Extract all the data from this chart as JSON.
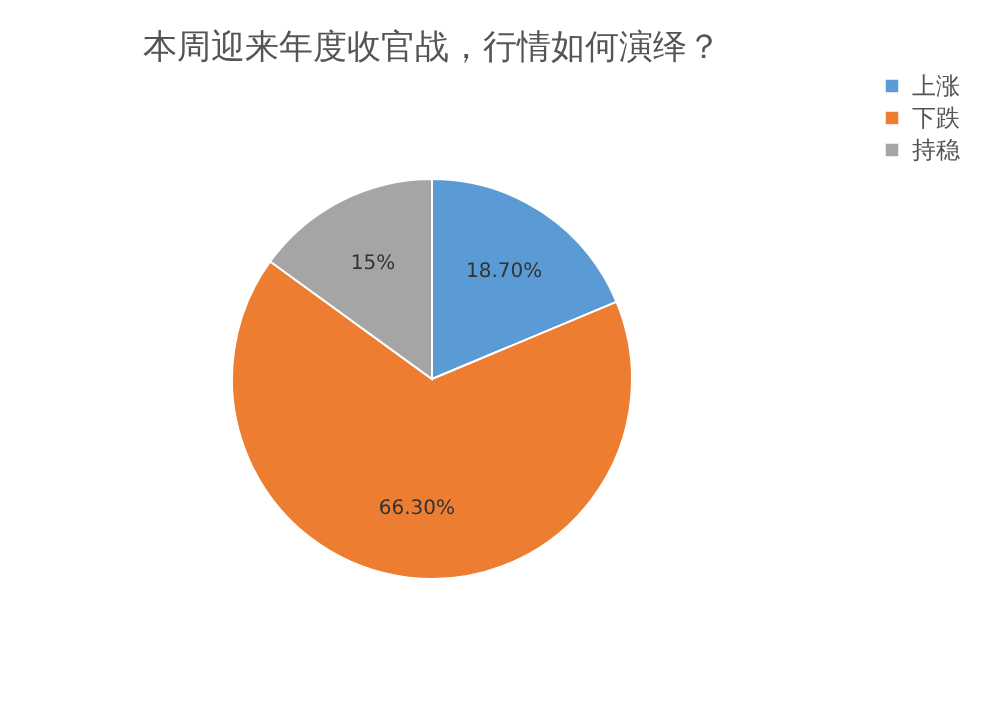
{
  "chart_data": {
    "type": "pie",
    "title": "本周迎来年度收官战，行情如何演绎？",
    "categories": [
      "上涨",
      "下跌",
      "持稳"
    ],
    "values": [
      18.7,
      66.3,
      15
    ],
    "value_labels": [
      "18.70%",
      "66.30%",
      "15%"
    ],
    "colors": [
      "#5b9bd5",
      "#ed7d31",
      "#a5a5a5"
    ],
    "legend": "right"
  }
}
